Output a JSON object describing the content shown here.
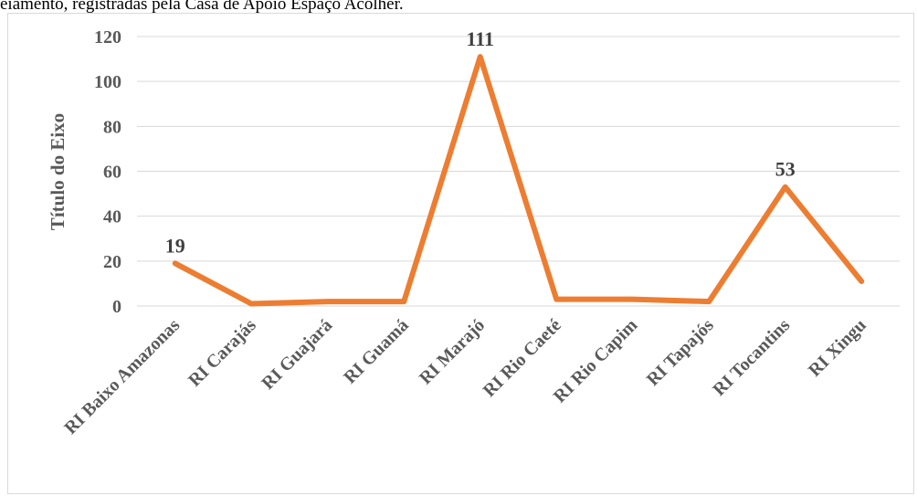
{
  "caption": "eiamento, registradas pela Casa de Apoio Espaço Acolher.",
  "chart_data": {
    "type": "line",
    "ylabel": "Título do Eixo",
    "ylim": [
      0,
      120
    ],
    "yticks": [
      0,
      20,
      40,
      60,
      80,
      100,
      120
    ],
    "categories": [
      "RI Baixo Amazonas",
      "RI Carajás",
      "RI Guajará",
      "RI Guamá",
      "RI Marajó",
      "RI Rio Caeté",
      "RI Rio Capim",
      "RI Tapajós",
      "RI Tocantins",
      "RI Xingu"
    ],
    "series": [
      {
        "values": [
          19,
          1,
          2,
          2,
          111,
          3,
          3,
          2,
          53,
          11
        ],
        "color": "#ed7d31"
      }
    ],
    "data_labels": [
      {
        "index": 0,
        "text": "19"
      },
      {
        "index": 4,
        "text": "111"
      },
      {
        "index": 8,
        "text": "53"
      }
    ],
    "grid": true,
    "gridColor": "#d9d9d9"
  }
}
